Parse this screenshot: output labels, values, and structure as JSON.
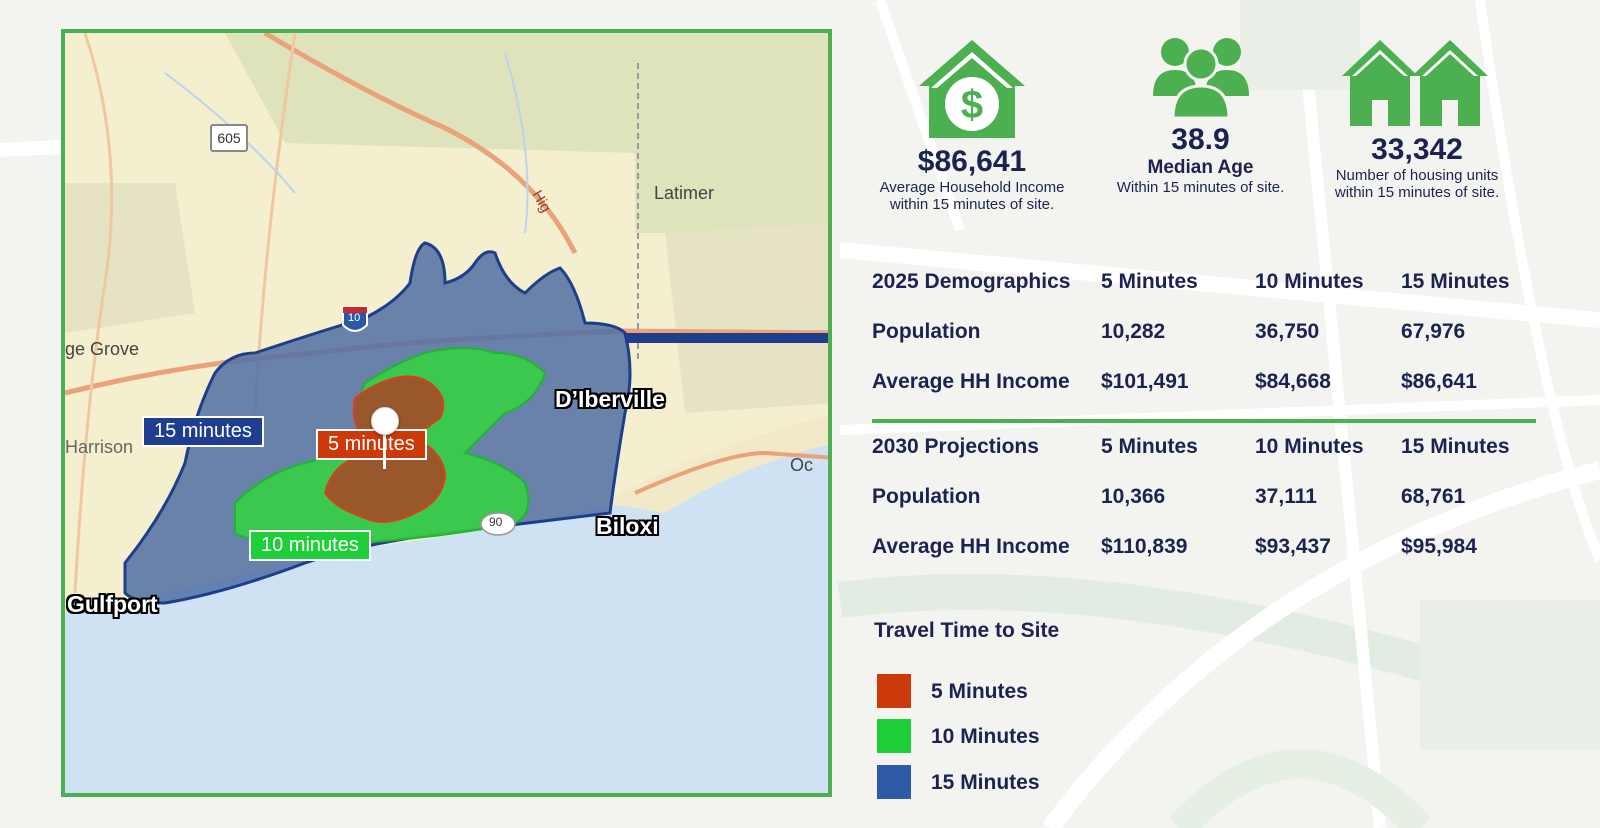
{
  "colors": {
    "accent_green": "#4caf50",
    "navy_text": "#1c2350",
    "zone_5": "#cc3a0a",
    "zone_10": "#1fcf3a",
    "zone_15": "#2e5aa8"
  },
  "map": {
    "places": {
      "latimer": "Latimer",
      "ge_grove": "ge Grove",
      "harrison": "Harrison",
      "dIberville": "D’Iberville",
      "biloxi": "Biloxi",
      "gulfport": "Gulfport",
      "oc": "Oc",
      "hig": "Hig"
    },
    "route_shield": "605",
    "interstate_shield": "10",
    "us_shield": "90",
    "zone_labels": {
      "fifteen": "15 minutes",
      "five": "5 minutes",
      "ten": "10 minutes"
    },
    "site_pin_icon": "map-pin-icon"
  },
  "stats": [
    {
      "icon": "house-dollar-icon",
      "value": "$86,641",
      "label": "",
      "description_1": "Average Household Income",
      "description_2": "within 15 minutes of site."
    },
    {
      "icon": "people-group-icon",
      "value": "38.9",
      "label": "Median Age",
      "description_1": "Within 15 minutes of site.",
      "description_2": ""
    },
    {
      "icon": "two-houses-icon",
      "value": "33,342",
      "label": "",
      "description_1": "Number of housing units",
      "description_2": "within 15 minutes of site."
    }
  ],
  "table": {
    "section_2025": {
      "header": [
        "2025 Demographics",
        "5 Minutes",
        "10 Minutes",
        "15 Minutes"
      ],
      "rows": [
        [
          "Population",
          "10,282",
          "36,750",
          "67,976"
        ],
        [
          "Average HH Income",
          "$101,491",
          "$84,668",
          "$86,641"
        ]
      ]
    },
    "section_2030": {
      "header": [
        "2030 Projections",
        "5 Minutes",
        "10 Minutes",
        "15 Minutes"
      ],
      "rows": [
        [
          "Population",
          "10,366",
          "37,111",
          "68,761"
        ],
        [
          "Average HH Income",
          "$110,839",
          "$93,437",
          "$95,984"
        ]
      ]
    }
  },
  "legend": {
    "title": "Travel Time to Site",
    "items": [
      {
        "label": "5 Minutes",
        "color": "#cc3a0a"
      },
      {
        "label": "10 Minutes",
        "color": "#1fcf3a"
      },
      {
        "label": "15 Minutes",
        "color": "#2e5aa8"
      }
    ]
  }
}
